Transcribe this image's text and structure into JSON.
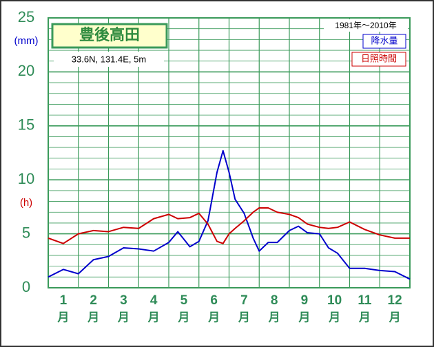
{
  "chart_data": {
    "type": "line",
    "title": "豊後高田",
    "subtitle": "33.6N, 131.4E, 5m",
    "period": "1981年～2010年",
    "y_unit_primary": "(mm)",
    "y_unit_secondary": "(h)",
    "x": [
      0,
      0.5,
      1,
      1.5,
      2,
      2.5,
      3,
      3.5,
      4,
      4.3,
      4.7,
      5,
      5.3,
      5.6,
      5.8,
      6,
      6.2,
      6.5,
      6.8,
      7,
      7.3,
      7.6,
      8,
      8.3,
      8.6,
      9,
      9.3,
      9.6,
      10,
      10.5,
      11,
      11.5,
      12
    ],
    "series": [
      {
        "name": "降水量",
        "color": "#0000cc",
        "values": [
          1.0,
          1.7,
          1.3,
          2.6,
          2.9,
          3.7,
          3.6,
          3.4,
          4.2,
          5.2,
          3.8,
          4.3,
          6.2,
          10.7,
          12.7,
          10.7,
          8.2,
          6.9,
          4.6,
          3.4,
          4.2,
          4.2,
          5.3,
          5.7,
          5.1,
          5.0,
          3.7,
          3.2,
          1.8,
          1.8,
          1.6,
          1.5,
          0.8
        ]
      },
      {
        "name": "日照時間",
        "color": "#cc0000",
        "values": [
          4.6,
          4.1,
          5.0,
          5.3,
          5.2,
          5.6,
          5.5,
          6.4,
          6.8,
          6.4,
          6.5,
          6.9,
          5.9,
          4.3,
          4.1,
          5.0,
          5.5,
          6.2,
          7.0,
          7.4,
          7.4,
          7.0,
          6.8,
          6.5,
          5.9,
          5.6,
          5.5,
          5.6,
          6.1,
          5.4,
          4.9,
          4.6,
          4.6
        ]
      }
    ],
    "month_labels": [
      "1",
      "2",
      "3",
      "4",
      "5",
      "6",
      "7",
      "8",
      "9",
      "10",
      "11",
      "12"
    ],
    "month_suffix": "月",
    "xlim": [
      0,
      12
    ],
    "xticks": [
      0,
      1,
      2,
      3,
      4,
      5,
      6,
      7,
      8,
      9,
      10,
      11,
      12
    ],
    "ylim": [
      0,
      25
    ],
    "yticks": [
      0,
      5,
      10,
      15,
      20,
      25
    ],
    "grid": true,
    "grid_color": "#3a9a5a"
  }
}
